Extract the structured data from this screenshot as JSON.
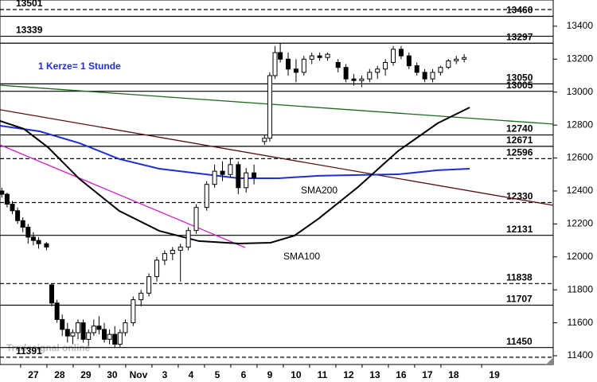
{
  "chart_data": {
    "type": "candlestick",
    "ylim": [
      11347,
      13559
    ],
    "xlim": [
      -1.27,
      19.79
    ],
    "yticks": [
      11400,
      11600,
      11800,
      12000,
      12200,
      12400,
      12600,
      12800,
      13000,
      13200,
      13400
    ],
    "xticks": [
      {
        "value": 0,
        "label": "27"
      },
      {
        "value": 1,
        "label": "28"
      },
      {
        "value": 2,
        "label": "29"
      },
      {
        "value": 3,
        "label": "30"
      },
      {
        "value": 4,
        "label": "Nov"
      },
      {
        "value": 5,
        "label": "3"
      },
      {
        "value": 6,
        "label": "4"
      },
      {
        "value": 7,
        "label": "5"
      },
      {
        "value": 8,
        "label": "6"
      },
      {
        "value": 9,
        "label": "9"
      },
      {
        "value": 10,
        "label": "10"
      },
      {
        "value": 11,
        "label": "11"
      },
      {
        "value": 12,
        "label": "12"
      },
      {
        "value": 13,
        "label": "13"
      },
      {
        "value": 14,
        "label": "16"
      },
      {
        "value": 15,
        "label": "17"
      },
      {
        "value": 16,
        "label": "18"
      },
      {
        "value": 17.55,
        "label": "19"
      }
    ],
    "annotation": "1 Kerze= 1 Stunde",
    "watermark": "Tradesignal online",
    "x": [
      -1.2,
      -1.0,
      -0.8,
      -0.6,
      -0.4,
      -0.2,
      0.0,
      0.2,
      0.5,
      0.7,
      0.9,
      1.1,
      1.3,
      1.5,
      1.7,
      1.9,
      2.1,
      2.3,
      2.5,
      2.7,
      2.9,
      3.1,
      3.3,
      3.5,
      3.8,
      4.1,
      4.4,
      4.7,
      5.0,
      5.3,
      5.6,
      5.9,
      6.2,
      6.6,
      6.9,
      7.2,
      7.5,
      7.8,
      8.1,
      8.4,
      8.8,
      9.0,
      9.2,
      9.4,
      9.7,
      10.0,
      10.3,
      10.6,
      10.9,
      11.2,
      11.6,
      11.9,
      12.2,
      12.5,
      12.8,
      13.1,
      13.4,
      13.7,
      14.0,
      14.3,
      14.6,
      14.9,
      15.2,
      15.5,
      15.8,
      16.1,
      16.4
    ],
    "open": [
      12400,
      12380,
      12320,
      12280,
      12220,
      12180,
      12120,
      12100,
      12080,
      11830,
      11720,
      11620,
      11560,
      11520,
      11540,
      11600,
      11500,
      11540,
      11580,
      11560,
      11500,
      11530,
      11470,
      11540,
      11600,
      11740,
      11780,
      11880,
      11980,
      12020,
      12040,
      12060,
      12160,
      12300,
      12440,
      12520,
      12500,
      12560,
      12420,
      12510,
      12700,
      12720,
      13100,
      13240,
      13200,
      13140,
      13120,
      13200,
      13220,
      13210,
      13180,
      13150,
      13080,
      13070,
      13080,
      13120,
      13140,
      13180,
      13260,
      13220,
      13160,
      13120,
      13080,
      13120,
      13150,
      13190,
      13200
    ],
    "high": [
      12420,
      12390,
      12340,
      12300,
      12240,
      12200,
      12150,
      12120,
      12090,
      11840,
      11740,
      11650,
      11600,
      11560,
      11620,
      11620,
      11560,
      11620,
      11640,
      11600,
      11560,
      11580,
      11560,
      11620,
      11760,
      11800,
      11900,
      12000,
      12040,
      12060,
      12080,
      12180,
      12320,
      12460,
      12560,
      12580,
      12600,
      12580,
      12540,
      12560,
      12740,
      13120,
      13280,
      13300,
      13240,
      13200,
      13220,
      13240,
      13240,
      13240,
      13200,
      13170,
      13110,
      13100,
      13140,
      13160,
      13200,
      13280,
      13280,
      13240,
      13180,
      13140,
      13140,
      13160,
      13200,
      13220,
      13230
    ],
    "low": [
      12360,
      12300,
      12260,
      12200,
      12150,
      12080,
      12070,
      12050,
      12040,
      11700,
      11600,
      11520,
      11480,
      11470,
      11500,
      11480,
      11460,
      11520,
      11530,
      11480,
      11470,
      11450,
      11450,
      11520,
      11580,
      11700,
      11760,
      11850,
      11950,
      11980,
      11850,
      12040,
      12140,
      12280,
      12420,
      12460,
      12480,
      12380,
      12390,
      12440,
      12680,
      12700,
      13080,
      13180,
      13100,
      13060,
      13100,
      13170,
      13190,
      13190,
      13120,
      13060,
      13040,
      13030,
      13060,
      13080,
      13100,
      13160,
      13200,
      13140,
      13100,
      13060,
      13060,
      13100,
      13140,
      13170,
      13180
    ],
    "close": [
      12380,
      12320,
      12280,
      12220,
      12180,
      12120,
      12100,
      12080,
      12060,
      11720,
      11620,
      11560,
      11520,
      11540,
      11600,
      11500,
      11540,
      11580,
      11560,
      11500,
      11530,
      11470,
      11540,
      11600,
      11740,
      11780,
      11880,
      11980,
      12020,
      12040,
      12060,
      12160,
      12300,
      12440,
      12520,
      12500,
      12560,
      12420,
      12510,
      12480,
      12720,
      13100,
      13240,
      13200,
      13140,
      13120,
      13200,
      13220,
      13210,
      13230,
      13150,
      13080,
      13070,
      13080,
      13120,
      13140,
      13180,
      13260,
      13220,
      13160,
      13120,
      13080,
      13120,
      13150,
      13190,
      13200,
      13210
    ],
    "levels": [
      {
        "value": 13501,
        "dashed": true,
        "label_side": "left"
      },
      {
        "value": 13460,
        "dashed": false,
        "label_side": "right"
      },
      {
        "value": 13339,
        "dashed": false,
        "label_side": "left"
      },
      {
        "value": 13297,
        "dashed": false,
        "label_side": "right"
      },
      {
        "value": 13050,
        "dashed": false,
        "label_side": "right"
      },
      {
        "value": 13005,
        "dashed": false,
        "label_side": "right"
      },
      {
        "value": 12740,
        "dashed": false,
        "label_side": "right"
      },
      {
        "value": 12671,
        "dashed": false,
        "label_side": "right"
      },
      {
        "value": 12596,
        "dashed": true,
        "label_side": "right"
      },
      {
        "value": 12330,
        "dashed": true,
        "label_side": "right"
      },
      {
        "value": 12131,
        "dashed": false,
        "label_side": "right"
      },
      {
        "value": 11838,
        "dashed": true,
        "label_side": "right"
      },
      {
        "value": 11707,
        "dashed": false,
        "label_side": "right"
      },
      {
        "value": 11450,
        "dashed": false,
        "label_side": "right"
      },
      {
        "value": 11391,
        "dashed": true,
        "label_side": "left"
      }
    ],
    "trendlines": [
      {
        "color": "#1a6b1a",
        "x": [
          -1.27,
          19.79
        ],
        "y": [
          13042,
          12806
        ]
      },
      {
        "color": "#5a1010",
        "x": [
          -1.27,
          19.79
        ],
        "y": [
          12893,
          12313
        ]
      },
      {
        "color": "#d020d0",
        "x": [
          -1.27,
          8.06
        ],
        "y": [
          12680,
          12057
        ]
      }
    ],
    "series": [
      {
        "name": "SMA200",
        "color": "#1f2fcf",
        "x": [
          -1.27,
          0.24,
          1.76,
          3.27,
          4.79,
          6.3,
          7.82,
          9.33,
          10.85,
          12.36,
          13.88,
          15.39,
          16.61
        ],
        "values": [
          12796,
          12762,
          12690,
          12594,
          12535,
          12506,
          12477,
          12477,
          12492,
          12497,
          12501,
          12526,
          12535
        ]
      },
      {
        "name": "SMA100",
        "color": "#000000",
        "x": [
          -1.27,
          -0.36,
          0.55,
          1.76,
          3.27,
          4.79,
          6.3,
          7.82,
          9.03,
          9.94,
          10.85,
          12.36,
          13.88,
          15.39,
          16.61
        ],
        "values": [
          12825,
          12777,
          12666,
          12472,
          12279,
          12158,
          12096,
          12081,
          12086,
          12129,
          12231,
          12424,
          12642,
          12811,
          12907
        ]
      }
    ]
  }
}
